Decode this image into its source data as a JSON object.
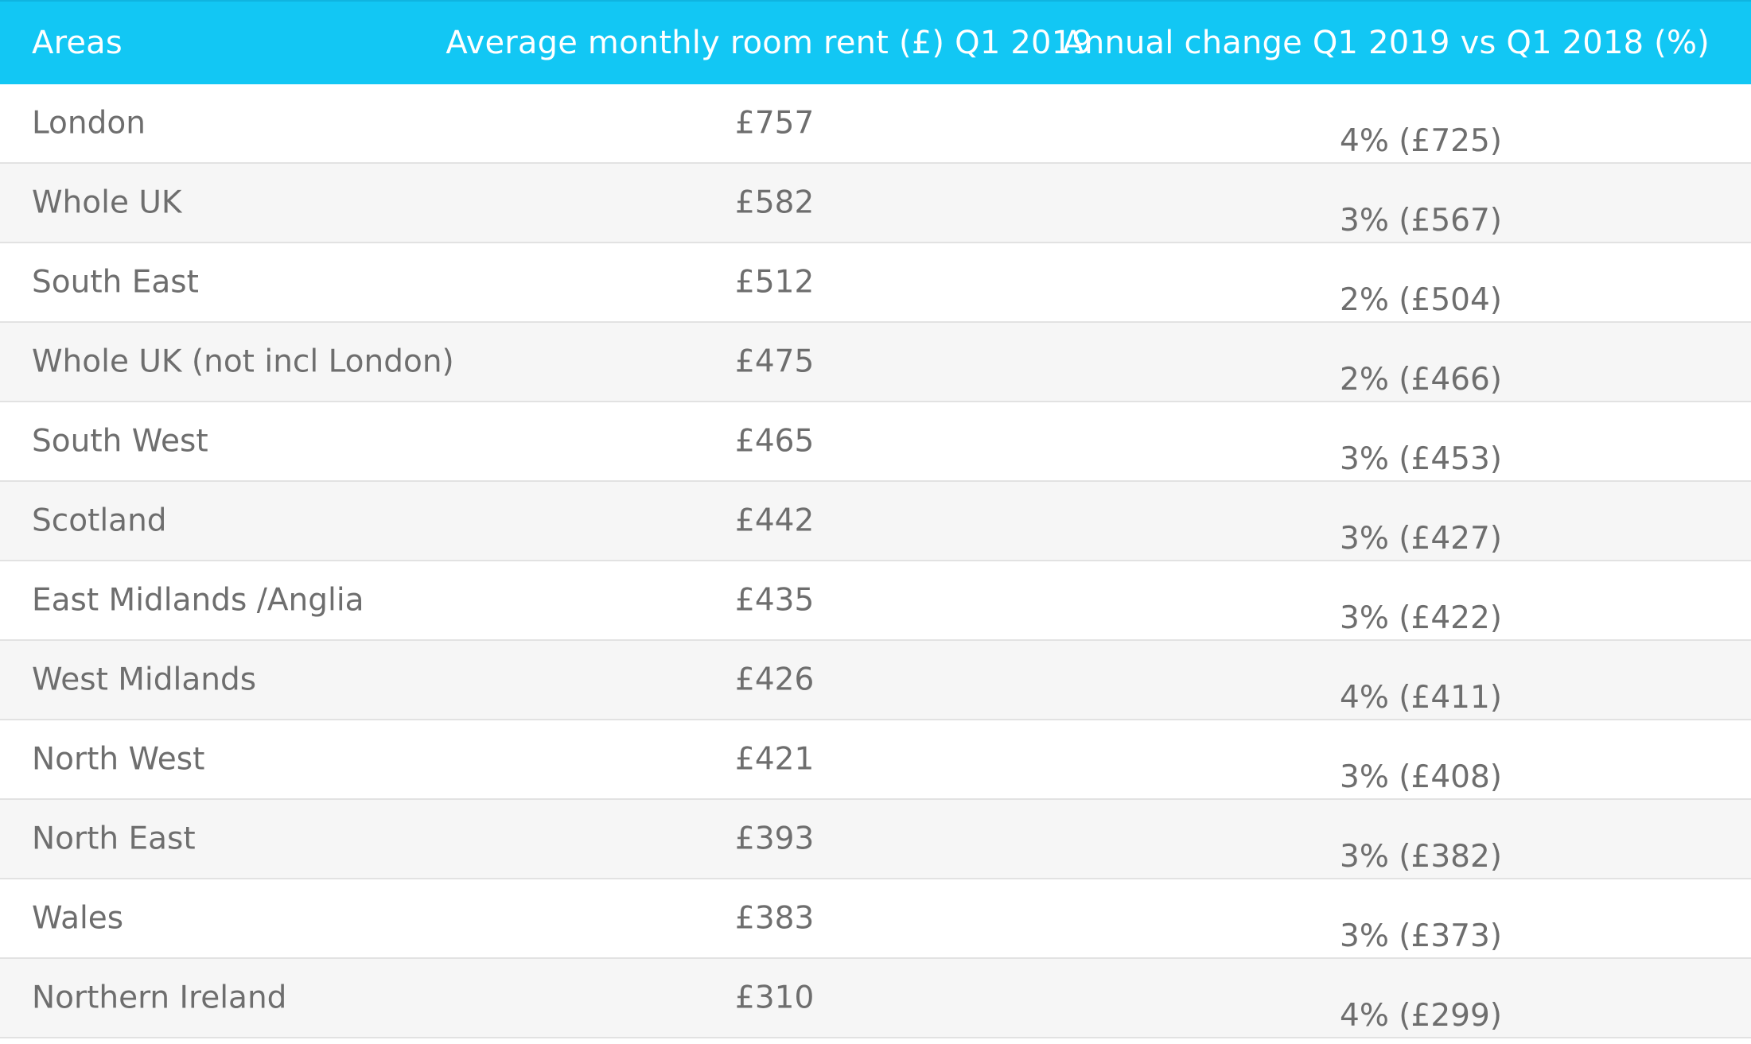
{
  "colors": {
    "header_background": "#12c7f4",
    "header_text": "#ffffff",
    "body_text": "#6e6e6e",
    "row_alt_background": "#f6f6f6",
    "row_border": "#e2e2e2"
  },
  "table": {
    "headers": {
      "area": "Areas",
      "rent": "Average monthly room rent (£) Q1 2019",
      "change": "Annual change Q1 2019 vs Q1 2018 (%)"
    },
    "rows": [
      {
        "area": "London",
        "rent": "£757",
        "change": "4% (£725)"
      },
      {
        "area": "Whole UK",
        "rent": "£582",
        "change": "3% (£567)"
      },
      {
        "area": "South East",
        "rent": "£512",
        "change": "2% (£504)"
      },
      {
        "area": "Whole UK (not incl London)",
        "rent": "£475",
        "change": "2% (£466)"
      },
      {
        "area": "South West",
        "rent": "£465",
        "change": "3% (£453)"
      },
      {
        "area": "Scotland",
        "rent": "£442",
        "change": "3% (£427)"
      },
      {
        "area": "East Midlands /Anglia",
        "rent": "£435",
        "change": "3% (£422)"
      },
      {
        "area": "West Midlands",
        "rent": "£426",
        "change": "4% (£411)"
      },
      {
        "area": "North West",
        "rent": "£421",
        "change": "3% (£408)"
      },
      {
        "area": "North East",
        "rent": "£393",
        "change": "3% (£382)"
      },
      {
        "area": "Wales",
        "rent": "£383",
        "change": "3% (£373)"
      },
      {
        "area": "Northern Ireland",
        "rent": "£310",
        "change": "4% (£299)"
      }
    ]
  }
}
